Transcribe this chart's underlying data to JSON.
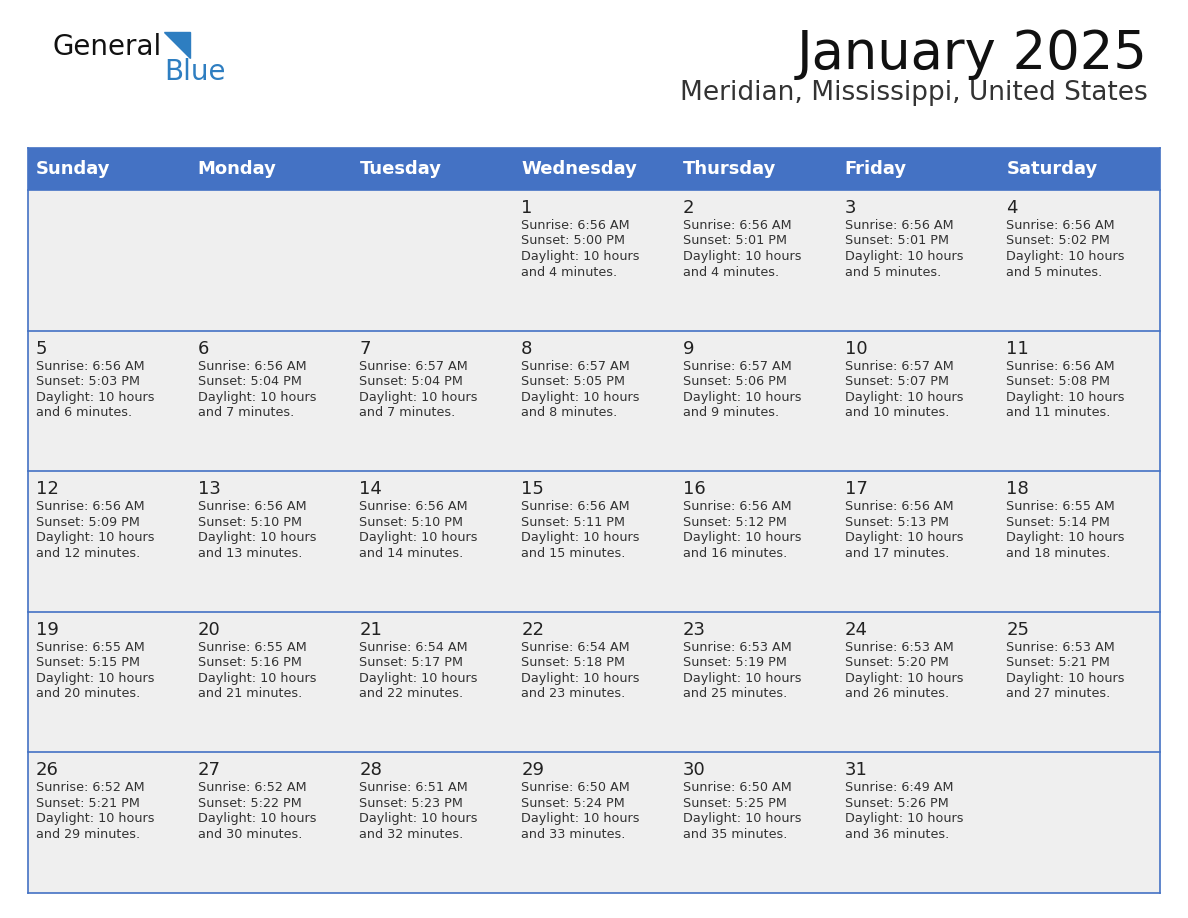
{
  "title": "January 2025",
  "subtitle": "Meridian, Mississippi, United States",
  "days_of_week": [
    "Sunday",
    "Monday",
    "Tuesday",
    "Wednesday",
    "Thursday",
    "Friday",
    "Saturday"
  ],
  "header_bg": "#4472C4",
  "header_text_color": "#FFFFFF",
  "cell_bg": "#EFEFEF",
  "cell_text_color": "#333333",
  "day_num_color": "#222222",
  "grid_line_color": "#4472C4",
  "title_color": "#111111",
  "subtitle_color": "#333333",
  "logo_general_color": "#111111",
  "logo_blue_color": "#2E7EC1",
  "calendar": [
    [
      null,
      null,
      null,
      {
        "day": 1,
        "sunrise": "6:56 AM",
        "sunset": "5:00 PM",
        "daylight": "10 hours and 4 minutes."
      },
      {
        "day": 2,
        "sunrise": "6:56 AM",
        "sunset": "5:01 PM",
        "daylight": "10 hours and 4 minutes."
      },
      {
        "day": 3,
        "sunrise": "6:56 AM",
        "sunset": "5:01 PM",
        "daylight": "10 hours and 5 minutes."
      },
      {
        "day": 4,
        "sunrise": "6:56 AM",
        "sunset": "5:02 PM",
        "daylight": "10 hours and 5 minutes."
      }
    ],
    [
      {
        "day": 5,
        "sunrise": "6:56 AM",
        "sunset": "5:03 PM",
        "daylight": "10 hours and 6 minutes."
      },
      {
        "day": 6,
        "sunrise": "6:56 AM",
        "sunset": "5:04 PM",
        "daylight": "10 hours and 7 minutes."
      },
      {
        "day": 7,
        "sunrise": "6:57 AM",
        "sunset": "5:04 PM",
        "daylight": "10 hours and 7 minutes."
      },
      {
        "day": 8,
        "sunrise": "6:57 AM",
        "sunset": "5:05 PM",
        "daylight": "10 hours and 8 minutes."
      },
      {
        "day": 9,
        "sunrise": "6:57 AM",
        "sunset": "5:06 PM",
        "daylight": "10 hours and 9 minutes."
      },
      {
        "day": 10,
        "sunrise": "6:57 AM",
        "sunset": "5:07 PM",
        "daylight": "10 hours and 10 minutes."
      },
      {
        "day": 11,
        "sunrise": "6:56 AM",
        "sunset": "5:08 PM",
        "daylight": "10 hours and 11 minutes."
      }
    ],
    [
      {
        "day": 12,
        "sunrise": "6:56 AM",
        "sunset": "5:09 PM",
        "daylight": "10 hours and 12 minutes."
      },
      {
        "day": 13,
        "sunrise": "6:56 AM",
        "sunset": "5:10 PM",
        "daylight": "10 hours and 13 minutes."
      },
      {
        "day": 14,
        "sunrise": "6:56 AM",
        "sunset": "5:10 PM",
        "daylight": "10 hours and 14 minutes."
      },
      {
        "day": 15,
        "sunrise": "6:56 AM",
        "sunset": "5:11 PM",
        "daylight": "10 hours and 15 minutes."
      },
      {
        "day": 16,
        "sunrise": "6:56 AM",
        "sunset": "5:12 PM",
        "daylight": "10 hours and 16 minutes."
      },
      {
        "day": 17,
        "sunrise": "6:56 AM",
        "sunset": "5:13 PM",
        "daylight": "10 hours and 17 minutes."
      },
      {
        "day": 18,
        "sunrise": "6:55 AM",
        "sunset": "5:14 PM",
        "daylight": "10 hours and 18 minutes."
      }
    ],
    [
      {
        "day": 19,
        "sunrise": "6:55 AM",
        "sunset": "5:15 PM",
        "daylight": "10 hours and 20 minutes."
      },
      {
        "day": 20,
        "sunrise": "6:55 AM",
        "sunset": "5:16 PM",
        "daylight": "10 hours and 21 minutes."
      },
      {
        "day": 21,
        "sunrise": "6:54 AM",
        "sunset": "5:17 PM",
        "daylight": "10 hours and 22 minutes."
      },
      {
        "day": 22,
        "sunrise": "6:54 AM",
        "sunset": "5:18 PM",
        "daylight": "10 hours and 23 minutes."
      },
      {
        "day": 23,
        "sunrise": "6:53 AM",
        "sunset": "5:19 PM",
        "daylight": "10 hours and 25 minutes."
      },
      {
        "day": 24,
        "sunrise": "6:53 AM",
        "sunset": "5:20 PM",
        "daylight": "10 hours and 26 minutes."
      },
      {
        "day": 25,
        "sunrise": "6:53 AM",
        "sunset": "5:21 PM",
        "daylight": "10 hours and 27 minutes."
      }
    ],
    [
      {
        "day": 26,
        "sunrise": "6:52 AM",
        "sunset": "5:21 PM",
        "daylight": "10 hours and 29 minutes."
      },
      {
        "day": 27,
        "sunrise": "6:52 AM",
        "sunset": "5:22 PM",
        "daylight": "10 hours and 30 minutes."
      },
      {
        "day": 28,
        "sunrise": "6:51 AM",
        "sunset": "5:23 PM",
        "daylight": "10 hours and 32 minutes."
      },
      {
        "day": 29,
        "sunrise": "6:50 AM",
        "sunset": "5:24 PM",
        "daylight": "10 hours and 33 minutes."
      },
      {
        "day": 30,
        "sunrise": "6:50 AM",
        "sunset": "5:25 PM",
        "daylight": "10 hours and 35 minutes."
      },
      {
        "day": 31,
        "sunrise": "6:49 AM",
        "sunset": "5:26 PM",
        "daylight": "10 hours and 36 minutes."
      },
      null
    ]
  ]
}
